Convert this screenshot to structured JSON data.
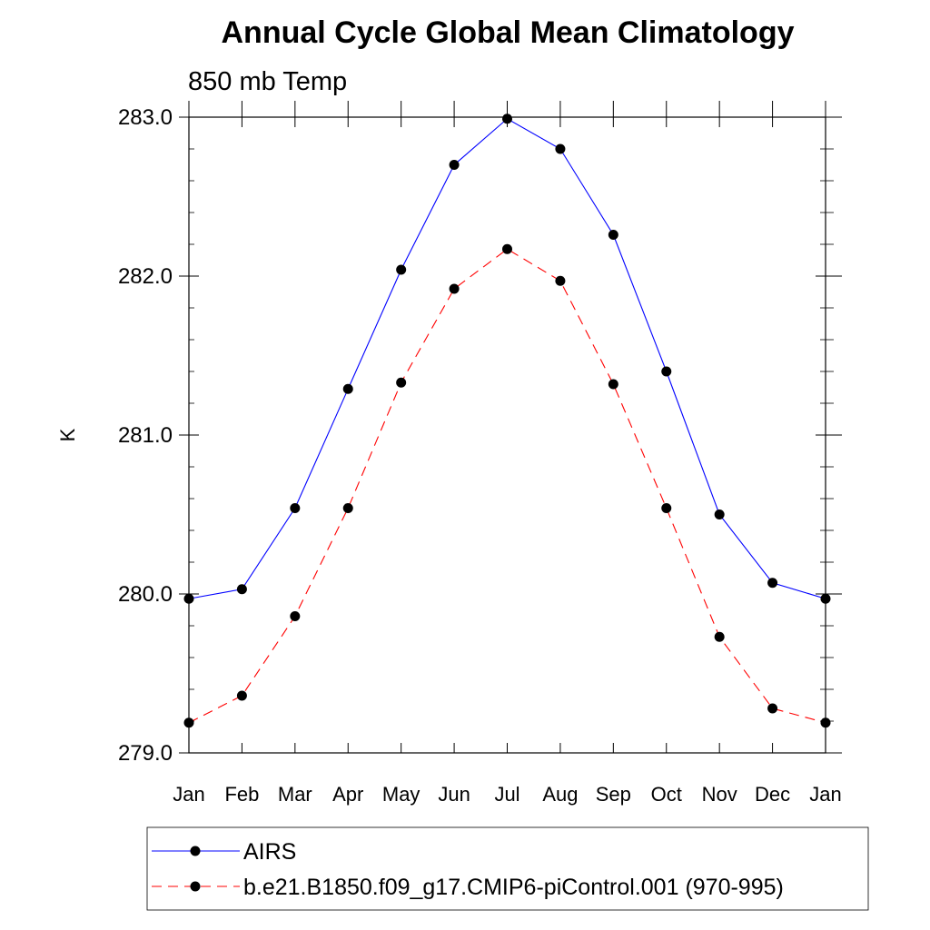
{
  "chart_data": {
    "type": "line",
    "title": "Annual Cycle Global Mean Climatology",
    "subtitle": "850 mb Temp",
    "xlabel": "",
    "ylabel": "K",
    "categories": [
      "Jan",
      "Feb",
      "Mar",
      "Apr",
      "May",
      "Jun",
      "Jul",
      "Aug",
      "Sep",
      "Oct",
      "Nov",
      "Dec",
      "Jan"
    ],
    "ylim": [
      279.0,
      283.0
    ],
    "yticks": [
      279.0,
      280.0,
      281.0,
      282.0,
      283.0
    ],
    "ytick_labels": [
      "279.0",
      "280.0",
      "281.0",
      "282.0",
      "283.0"
    ],
    "grid": false,
    "legend_position": "bottom",
    "series": [
      {
        "name": "AIRS",
        "color": "#0000ff",
        "line_style": "solid",
        "marker": "filled-circle",
        "values": [
          279.97,
          280.03,
          280.54,
          281.29,
          282.04,
          282.7,
          282.99,
          282.8,
          282.26,
          281.4,
          280.5,
          280.07,
          279.97
        ]
      },
      {
        "name": "b.e21.B1850.f09_g17.CMIP6-piControl.001 (970-995)",
        "color": "#ff0000",
        "line_style": "dashed",
        "marker": "filled-circle",
        "values": [
          279.19,
          279.36,
          279.86,
          280.54,
          281.33,
          281.92,
          282.17,
          281.97,
          281.32,
          280.54,
          279.73,
          279.28,
          279.19
        ]
      }
    ]
  }
}
